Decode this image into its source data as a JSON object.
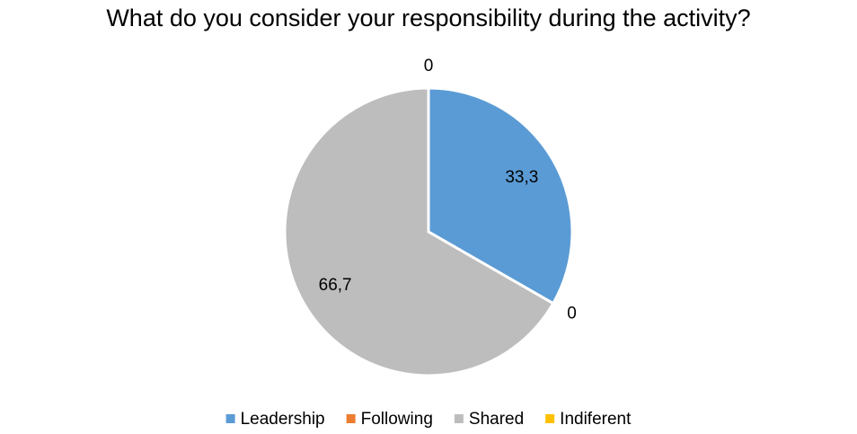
{
  "chart_data": {
    "type": "pie",
    "title": "What do you consider your responsibility during the activity?",
    "categories": [
      "Leadership",
      "Following",
      "Shared",
      "Indiferent"
    ],
    "values": [
      33.3,
      0,
      66.7,
      0
    ],
    "value_labels": [
      "33,3",
      "0",
      "66,7",
      "0"
    ],
    "colors": [
      "#5b9bd5",
      "#ed7d31",
      "#bdbdbd",
      "#ffc000"
    ],
    "legend": "bottom"
  }
}
